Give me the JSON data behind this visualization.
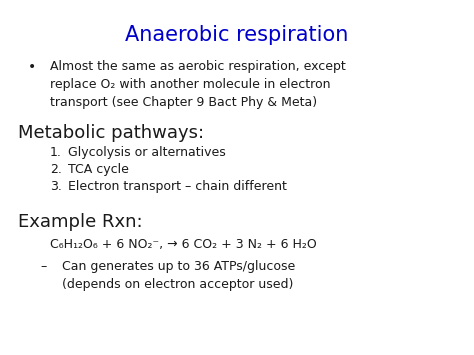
{
  "title": "Anaerobic respiration",
  "title_color": "#0000cc",
  "title_fontsize": 15,
  "bg_color": "#ffffff",
  "body_fontsize": 9,
  "body_color": "#1a1a1a",
  "section_fontsize": 13,
  "bullet_line1": "Almost the same as aerobic respiration, except",
  "bullet_line2": "replace O₂ with another molecule in electron",
  "bullet_line3": "transport (see Chapter 9 Bact Phy & Meta)",
  "section1": "Metabolic pathways:",
  "items1": [
    "Glycolysis or alternatives",
    "TCA cycle",
    "Electron transport – chain different"
  ],
  "section2": "Example Rxn:",
  "eq_part1": "C₆H₁₂O₆ + 6 NO₂",
  "eq_sup": "⁻",
  "eq_part2": ", → 6 CO₂ + 3 N₂ + 6 H₂O",
  "dash_line1": "Can generates up to 36 ATPs/glucose",
  "dash_line2": "(depends on electron acceptor used)"
}
